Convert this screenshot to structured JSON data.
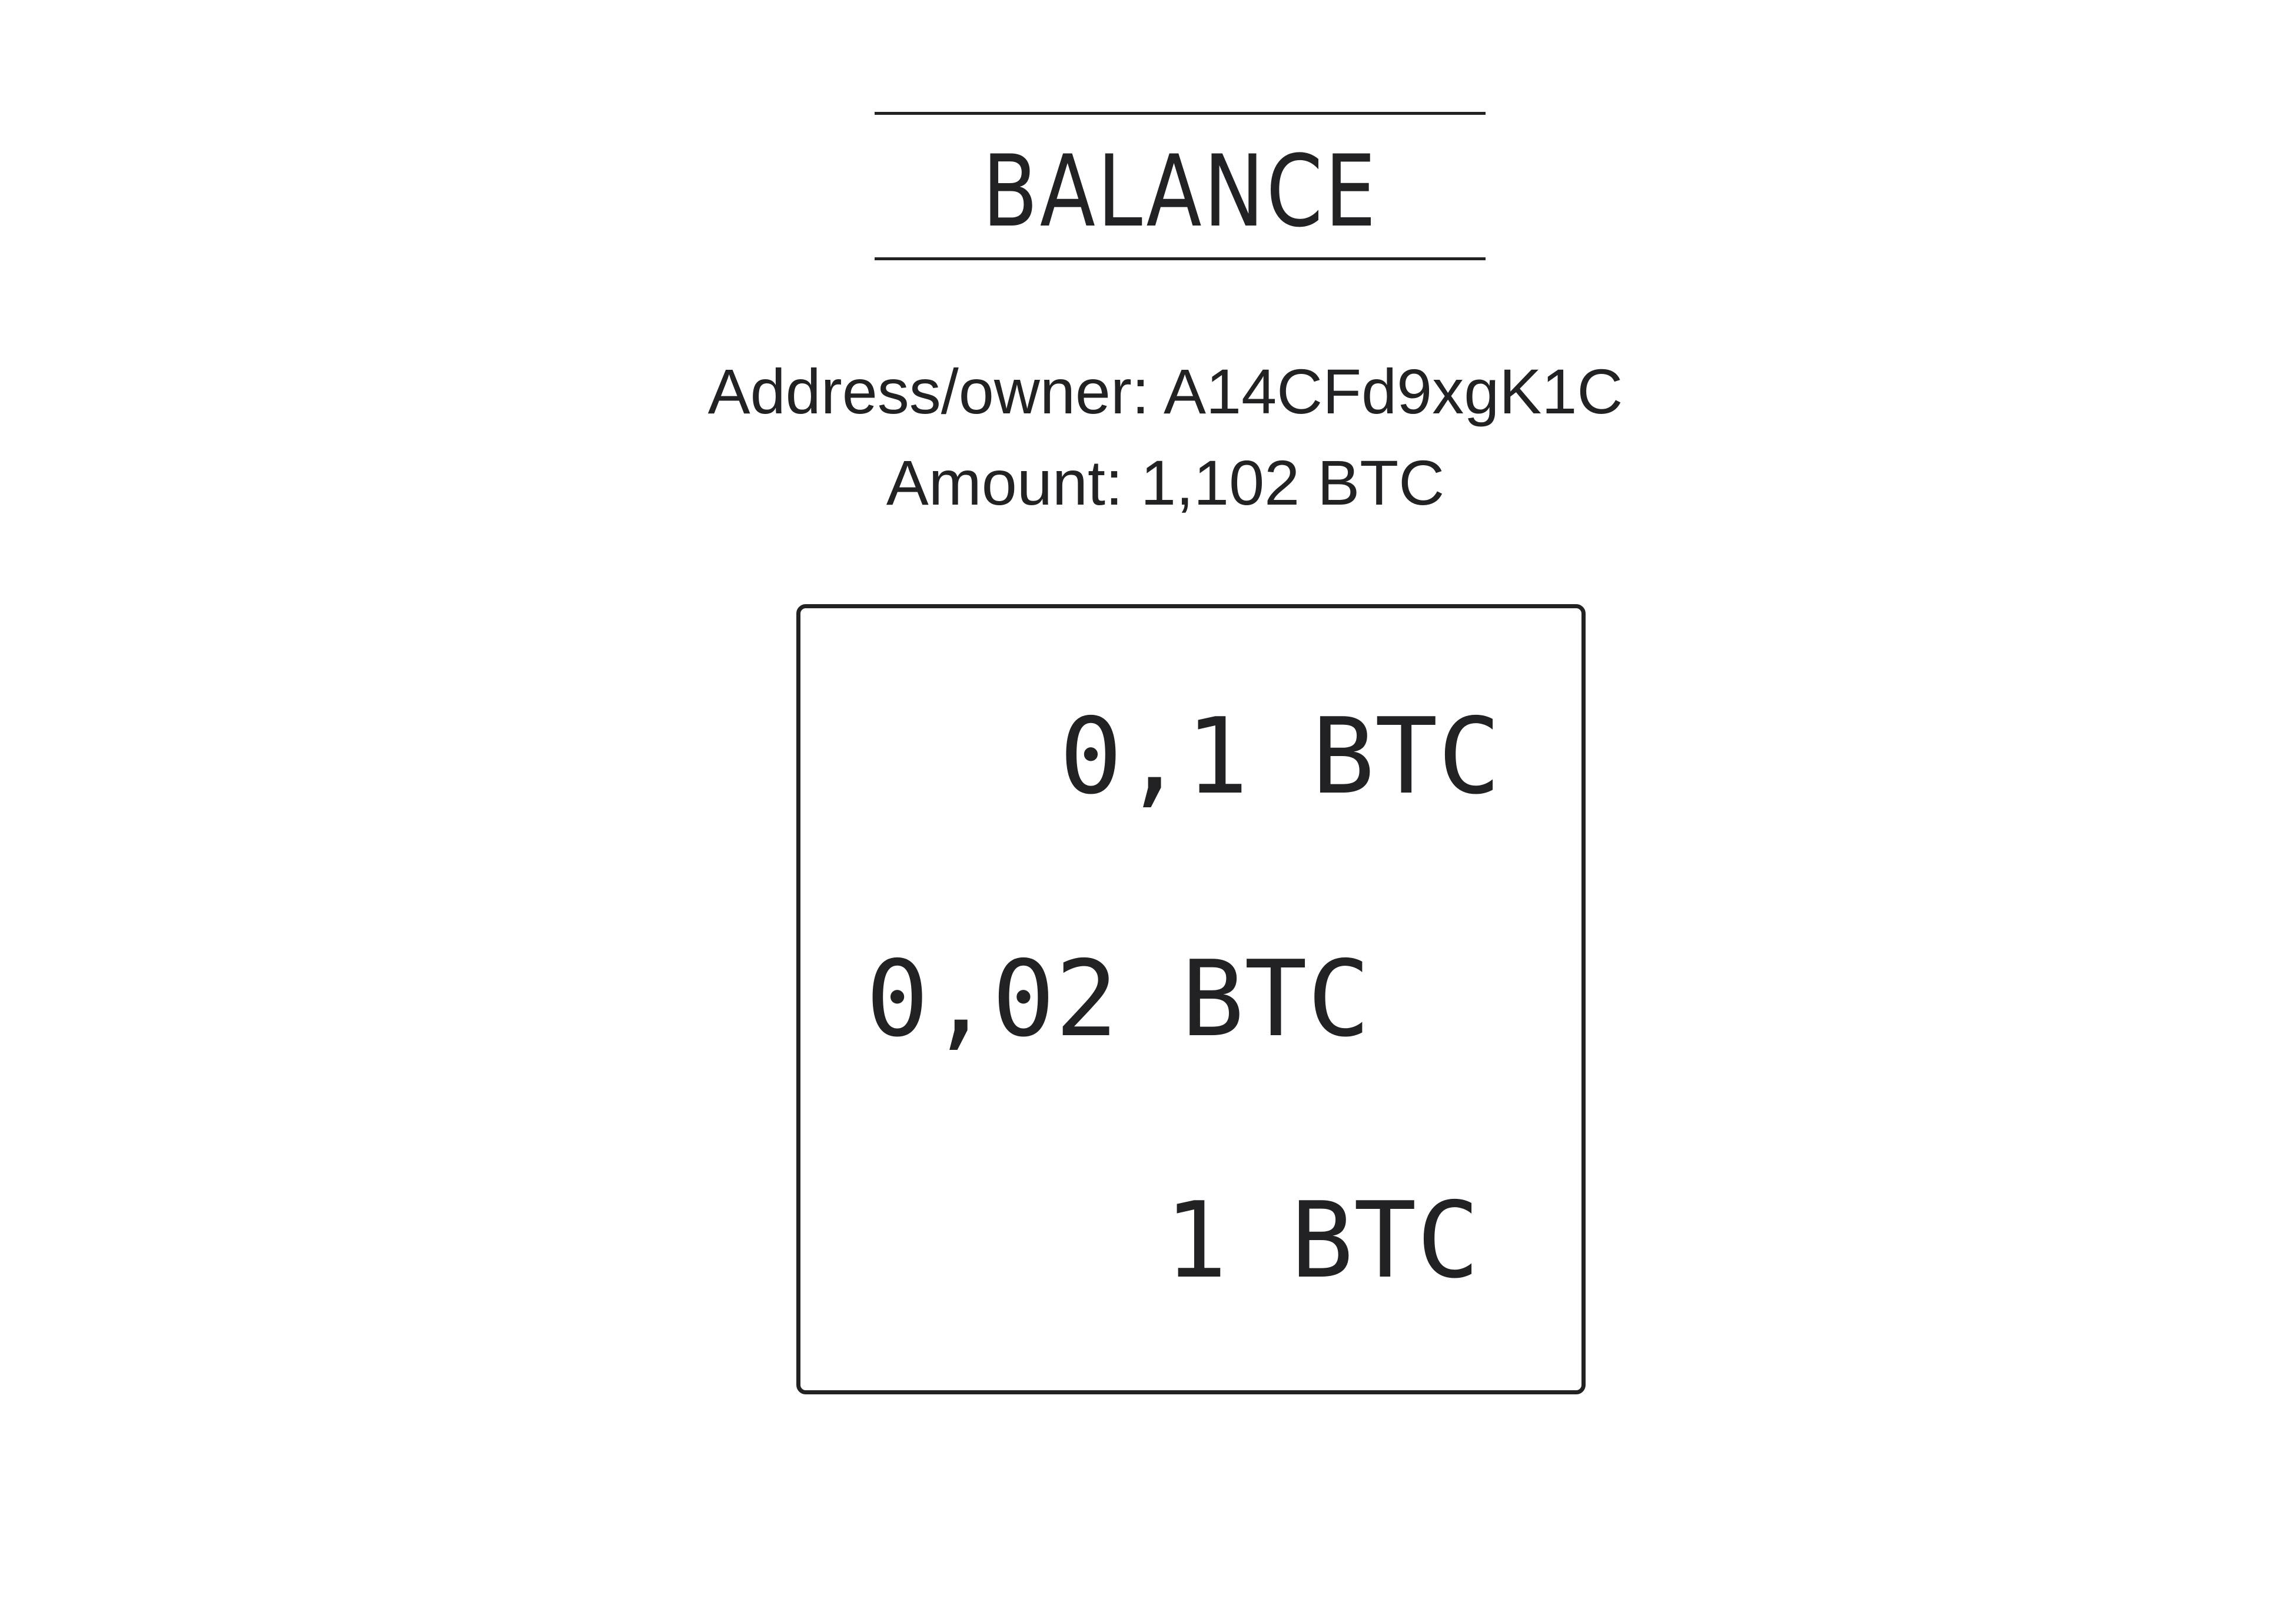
{
  "title": "BALANCE",
  "address_line": "Address/owner: A14CFd9xgK1C",
  "amount_line": "Amount: 1,102 BTC",
  "coins": [
    "0,1 BTC",
    "0,02 BTC",
    "1 BTC"
  ]
}
